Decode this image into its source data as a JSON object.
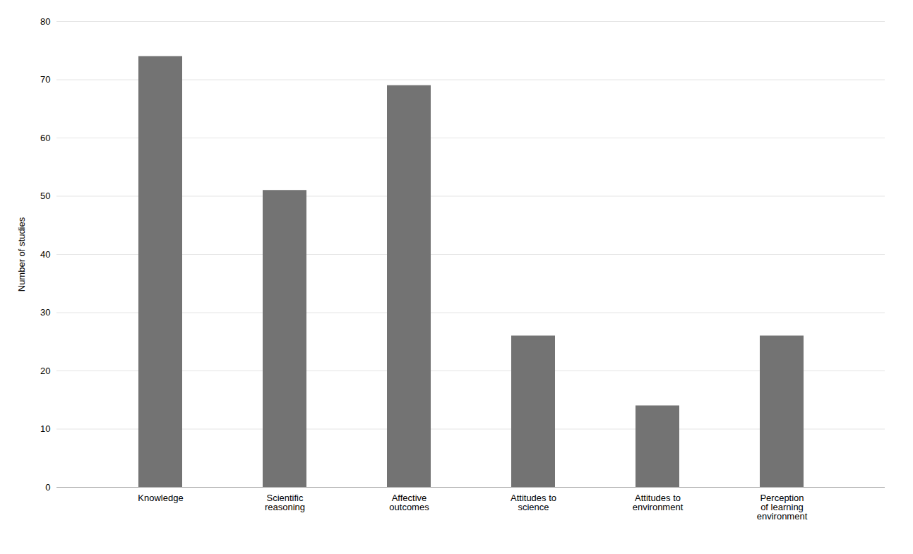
{
  "chart_data": {
    "type": "bar",
    "categories": [
      "Knowledge",
      "Scientific\nreasoning",
      "Affective\noutcomes",
      "Attitudes to\nscience",
      "Attitudes to\nenvironment",
      "Perception\nof learning\nenvironment"
    ],
    "values": [
      74,
      51,
      69,
      26,
      14,
      26
    ],
    "color": "#737373",
    "ylabel": "Number of studies",
    "ylim": [
      0,
      80
    ],
    "yticks": [
      0,
      10,
      20,
      30,
      40,
      50,
      60,
      70,
      80
    ],
    "grid": true
  }
}
